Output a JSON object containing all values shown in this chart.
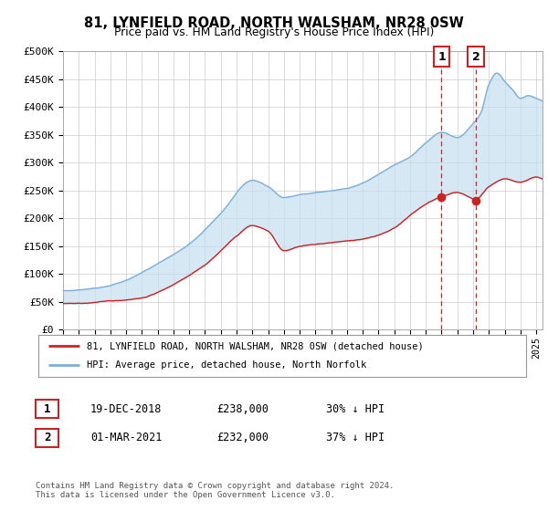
{
  "title": "81, LYNFIELD ROAD, NORTH WALSHAM, NR28 0SW",
  "subtitle": "Price paid vs. HM Land Registry's House Price Index (HPI)",
  "ylabel_ticks": [
    "£0",
    "£50K",
    "£100K",
    "£150K",
    "£200K",
    "£250K",
    "£300K",
    "£350K",
    "£400K",
    "£450K",
    "£500K"
  ],
  "ytick_vals": [
    0,
    50000,
    100000,
    150000,
    200000,
    250000,
    300000,
    350000,
    400000,
    450000,
    500000
  ],
  "ylim": [
    0,
    500000
  ],
  "xlim_start": 1995.0,
  "xlim_end": 2025.4,
  "hpi_color": "#7ab0d8",
  "hpi_fill_color": "#c5dff0",
  "price_color": "#cc2222",
  "marker1_date": 2019.0,
  "marker2_date": 2021.17,
  "marker1_price": 238000,
  "marker2_price": 232000,
  "legend_entries": [
    "81, LYNFIELD ROAD, NORTH WALSHAM, NR28 0SW (detached house)",
    "HPI: Average price, detached house, North Norfolk"
  ],
  "table_rows": [
    [
      "1",
      "19-DEC-2018",
      "£238,000",
      "30% ↓ HPI"
    ],
    [
      "2",
      "01-MAR-2021",
      "£232,000",
      "37% ↓ HPI"
    ]
  ],
  "footnote": "Contains HM Land Registry data © Crown copyright and database right 2024.\nThis data is licensed under the Open Government Licence v3.0.",
  "background_color": "#ffffff",
  "grid_color": "#cccccc"
}
